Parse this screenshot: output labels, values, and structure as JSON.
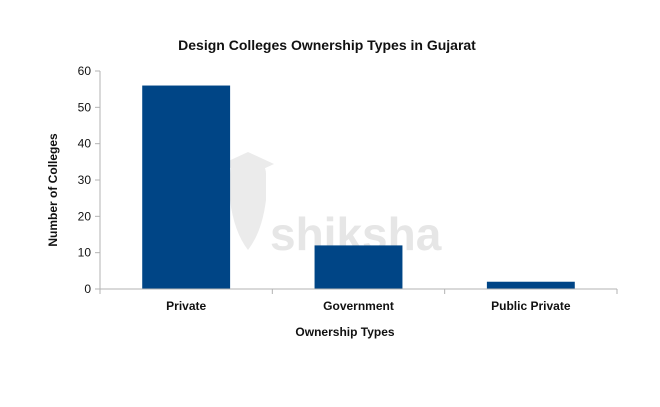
{
  "chart_data": {
    "type": "bar",
    "title": "Design Colleges Ownership Types in Gujarat",
    "xlabel": "Ownership Types",
    "ylabel": "Number of Colleges",
    "categories": [
      "Private",
      "Government",
      "Public Private"
    ],
    "values": [
      56,
      12,
      2
    ],
    "ylim": [
      0,
      60
    ],
    "yticks": [
      0,
      10,
      20,
      30,
      40,
      50,
      60
    ],
    "grid": false,
    "legend": "none",
    "bar_color": "#004586"
  },
  "watermark": {
    "text": "shiksha",
    "icon": "graduate-head-icon"
  }
}
